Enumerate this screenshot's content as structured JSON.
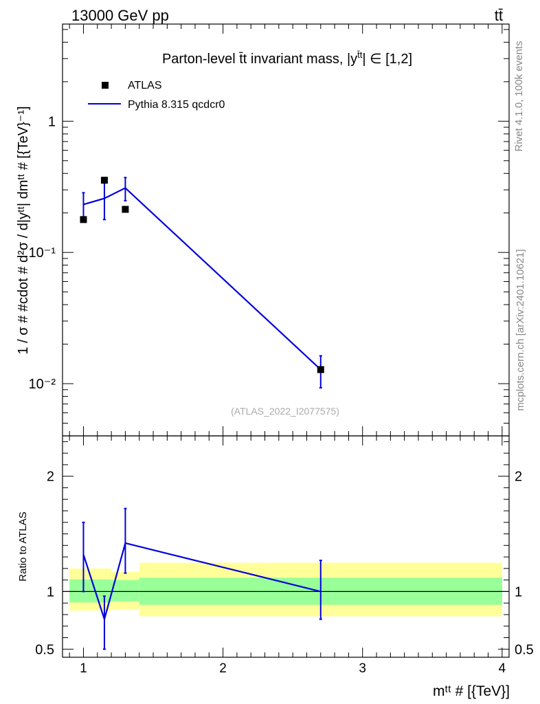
{
  "header": {
    "energy_label": "13000 GeV pp",
    "process_label": "tt̄",
    "plot_title": "Parton-level t̄t invariant mass, |y",
    "plot_title_sup": "t̄t",
    "plot_title_tail": "| ∈ [1,2]"
  },
  "side_labels": {
    "rivet": "Rivet 4.1.0,  100k events",
    "mcplots": "mcplots.cern.ch [arXiv:2401.10621]"
  },
  "watermark": "(ATLAS_2022_I2077575)",
  "legend": {
    "data_label": "ATLAS",
    "mc_label": "Pythia 8.315 qcdcr0"
  },
  "colors": {
    "data": "#000000",
    "mc": "#0000dd",
    "band_outer": "#ffff99",
    "band_inner": "#99ff99"
  },
  "chart_data": [
    {
      "type": "scatter",
      "panel": "main",
      "yscale": "log",
      "ylabel": "1 / σ # #cdot # d²σ / d|yᵗᵗ| dmᵗᵗ # [{TeV}⁻¹]",
      "xlim": [
        0.85,
        4.05
      ],
      "ylim": [
        0.004,
        5.5
      ],
      "y_ticks": [
        {
          "value": 1,
          "label": "1"
        },
        {
          "value": 0.1,
          "label": "10⁻¹"
        },
        {
          "value": 0.01,
          "label": "10⁻²"
        }
      ],
      "series": [
        {
          "name": "ATLAS",
          "points": [
            {
              "x": 1.0,
              "y": 0.178
            },
            {
              "x": 1.15,
              "y": 0.355
            },
            {
              "x": 1.3,
              "y": 0.213
            },
            {
              "x": 2.7,
              "y": 0.0128
            }
          ]
        },
        {
          "name": "Pythia 8.315 qcdcr0",
          "points": [
            {
              "x": 1.0,
              "y": 0.232,
              "ylo": 0.178,
              "yhi": 0.285
            },
            {
              "x": 1.15,
              "y": 0.258,
              "ylo": 0.178,
              "yhi": 0.355
            },
            {
              "x": 1.3,
              "y": 0.31,
              "ylo": 0.248,
              "yhi": 0.372
            },
            {
              "x": 2.7,
              "y": 0.0128,
              "ylo": 0.0093,
              "yhi": 0.0163
            }
          ]
        }
      ]
    },
    {
      "type": "line",
      "panel": "ratio",
      "ylabel": "Ratio to ATLAS",
      "xlabel": "mᵗᵗ # [{TeV}]",
      "xlim": [
        0.85,
        4.05
      ],
      "ylim": [
        0.43,
        2.35
      ],
      "x_ticks": [
        {
          "value": 1,
          "label": "1"
        },
        {
          "value": 2,
          "label": "2"
        },
        {
          "value": 3,
          "label": "3"
        },
        {
          "value": 4,
          "label": "4"
        }
      ],
      "y_ticks": [
        {
          "value": 0.5,
          "label": "0.5"
        },
        {
          "value": 1,
          "label": "1"
        },
        {
          "value": 2,
          "label": "2"
        }
      ],
      "bands": [
        {
          "x0": 0.9,
          "x1": 1.1,
          "inner": [
            0.905,
            1.105
          ],
          "outer": [
            0.835,
            1.2
          ]
        },
        {
          "x0": 1.1,
          "x1": 1.2,
          "inner": [
            0.905,
            1.105
          ],
          "outer": [
            0.835,
            1.2
          ]
        },
        {
          "x0": 1.2,
          "x1": 1.4,
          "inner": [
            0.915,
            1.1
          ],
          "outer": [
            0.845,
            1.17
          ]
        },
        {
          "x0": 1.4,
          "x1": 4.0,
          "inner": [
            0.885,
            1.12
          ],
          "outer": [
            0.785,
            1.25
          ]
        }
      ],
      "series": [
        {
          "name": "Pythia 8.315 qcdcr0",
          "points": [
            {
              "x": 1.0,
              "y": 1.32,
              "ylo": 1.0,
              "yhi": 1.6
            },
            {
              "x": 1.15,
              "y": 0.76,
              "ylo": 0.5,
              "yhi": 0.96
            },
            {
              "x": 1.3,
              "y": 1.42,
              "ylo": 1.16,
              "yhi": 1.72
            },
            {
              "x": 2.7,
              "y": 1.0,
              "ylo": 0.76,
              "yhi": 1.27
            }
          ]
        }
      ]
    }
  ]
}
